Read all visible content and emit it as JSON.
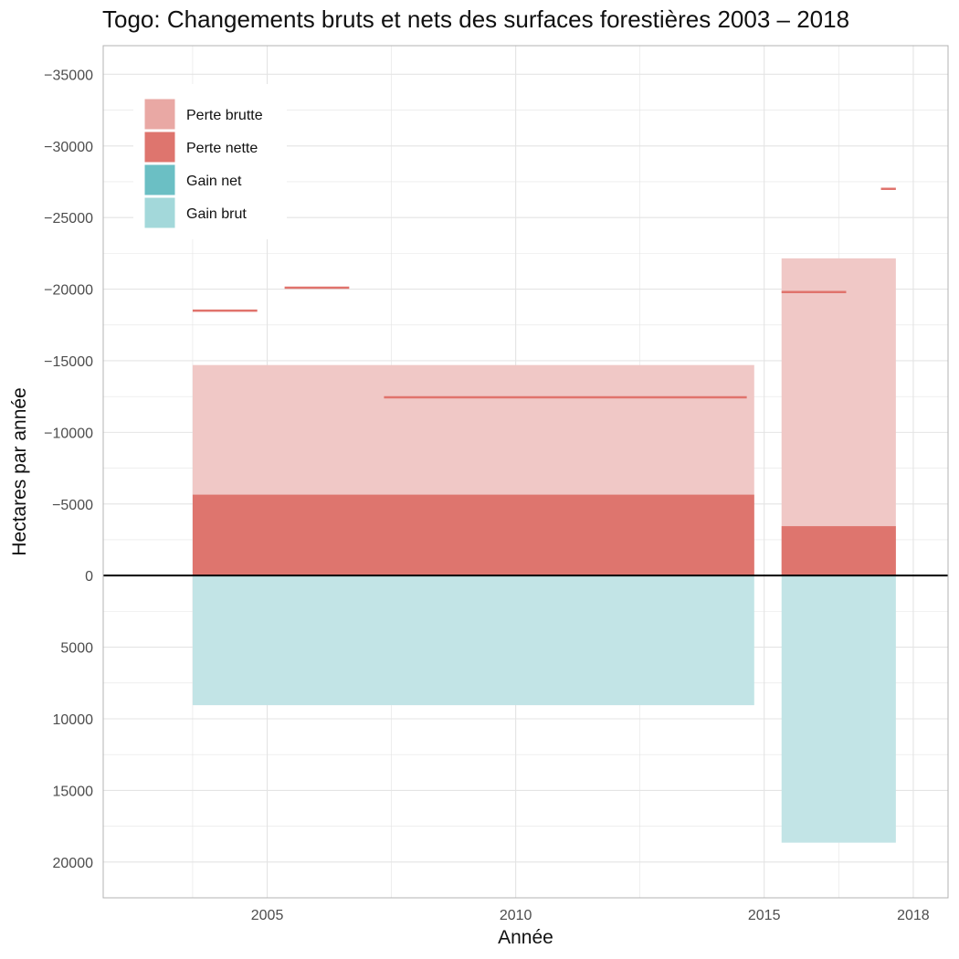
{
  "chart_data": {
    "type": "bar",
    "title": "Togo: Changements bruts et nets des surfaces forestières 2003 – 2018",
    "xlabel": "Année",
    "ylabel": "Hectares par année",
    "xlim": [
      2001.7,
      2018.7
    ],
    "ylim": [
      22500,
      -37000
    ],
    "y_reversed": true,
    "x_ticks": [
      2005,
      2010,
      2015,
      2018
    ],
    "x_minor_ticks": [
      2003.5,
      2007.5,
      2012.5,
      2016.5
    ],
    "y_ticks": [
      -35000,
      -30000,
      -25000,
      -20000,
      -15000,
      -10000,
      -5000,
      0,
      5000,
      10000,
      15000,
      20000
    ],
    "y_tick_labels": [
      "−35000",
      "−30000",
      "−25000",
      "−20000",
      "−15000",
      "−10000",
      "−5000",
      "0",
      "5000",
      "10000",
      "15000",
      "20000"
    ],
    "grid": true,
    "legend_position": "top-left",
    "colors": {
      "perte_brutte": "#f0c8c6",
      "perte_nette": "#de756e",
      "gain_net": "#6bbfc4",
      "gain_brut": "#c2e4e6",
      "legend_perte_brutte": "#e9a8a4",
      "legend_gain_brut": "#a3d8da",
      "segment": "#e0736c",
      "grid": "#e4e4e4",
      "zero_line": "#000000"
    },
    "legend": [
      {
        "label": "Perte brutte",
        "color_key": "legend_perte_brutte"
      },
      {
        "label": "Perte nette",
        "color_key": "perte_nette"
      },
      {
        "label": "Gain net",
        "color_key": "gain_net"
      },
      {
        "label": "Gain brut",
        "color_key": "legend_gain_brut"
      }
    ],
    "periods": [
      {
        "start": 2003.5,
        "end": 2014.8,
        "perte_brutte": -14700,
        "perte_nette": -5650,
        "gain_brut": 9050
      },
      {
        "start": 2015.35,
        "end": 2017.65,
        "perte_brutte": -22150,
        "perte_nette": -3450,
        "gain_brut": 18650
      }
    ],
    "segments": [
      {
        "x_start": 2003.5,
        "x_end": 2004.8,
        "value": -18500
      },
      {
        "x_start": 2005.35,
        "x_end": 2006.65,
        "value": -20100
      },
      {
        "x_start": 2007.35,
        "x_end": 2014.65,
        "value": -12450
      },
      {
        "x_start": 2015.35,
        "x_end": 2016.65,
        "value": -19800
      },
      {
        "x_start": 2017.35,
        "x_end": 2017.65,
        "value": -27000
      }
    ]
  }
}
